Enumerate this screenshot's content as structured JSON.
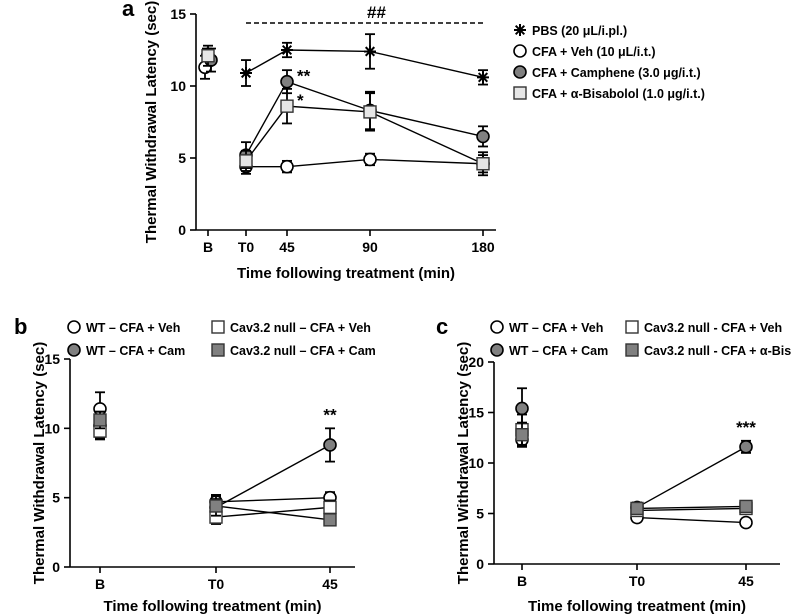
{
  "chart_data": [
    {
      "id": "a",
      "type": "line",
      "panel_label": "a",
      "xlabel": "Time following treatment (min)",
      "ylabel": "Thermal Withdrawal Latency (sec)",
      "x_ticks": [
        "B",
        "T0",
        "45",
        "90",
        "180"
      ],
      "ylim": [
        0,
        15
      ],
      "y_ticks": [
        0,
        5,
        10,
        15
      ],
      "legend_position": "right",
      "series": [
        {
          "name": "PBS (20 μL/i.pl.)",
          "marker": "star",
          "fill": "#000000",
          "values": [
            12.2,
            10.9,
            12.5,
            12.4,
            10.6
          ],
          "errors": [
            0.4,
            0.9,
            0.5,
            1.2,
            0.5
          ]
        },
        {
          "name": "CFA + Veh (10 μL/i.t.)",
          "marker": "circle",
          "fill": "#ffffff",
          "values": [
            11.3,
            4.4,
            4.4,
            4.9,
            4.6
          ],
          "errors": [
            0.8,
            0.5,
            0.4,
            0.4,
            0.8
          ]
        },
        {
          "name": "CFA + Camphene (3.0 μg/i.t.)",
          "marker": "circle",
          "fill": "#808080",
          "values": [
            11.8,
            5.2,
            10.3,
            8.3,
            6.5
          ],
          "errors": [
            0.8,
            0.9,
            0.8,
            1.3,
            0.7
          ]
        },
        {
          "name": "CFA + α-Bisabolol (1.0 μg/i.t.)",
          "marker": "square",
          "fill": "#e6e6e6",
          "values": [
            12.1,
            4.8,
            8.6,
            8.2,
            4.6
          ],
          "errors": [
            0.7,
            0.7,
            1.2,
            1.3,
            0.6
          ]
        }
      ],
      "annotations": [
        {
          "text": "##",
          "x_from": "T0",
          "x_to": "180",
          "line": "dashed"
        },
        {
          "text": "**",
          "x": "45",
          "series": "CFA + Camphene (3.0 μg/i.t.)"
        },
        {
          "text": "*",
          "x": "45",
          "series": "CFA + α-Bisabolol (1.0 μg/i.t.)"
        }
      ]
    },
    {
      "id": "b",
      "type": "line",
      "panel_label": "b",
      "xlabel": "Time following treatment (min)",
      "ylabel": "Thermal Withdrawal Latency (sec)",
      "x_ticks": [
        "B",
        "T0",
        "45"
      ],
      "ylim": [
        0,
        15
      ],
      "y_ticks": [
        0,
        5,
        10,
        15
      ],
      "legend_position": "top",
      "series": [
        {
          "name": "WT – CFA + Veh",
          "marker": "circle",
          "fill": "#ffffff",
          "values": [
            11.4,
            4.7,
            5.0
          ],
          "errors": [
            1.2,
            0.5,
            0.4
          ]
        },
        {
          "name": "WT – CFA + Cam",
          "marker": "circle",
          "fill": "#808080",
          "values": [
            10.2,
            4.3,
            8.8
          ],
          "errors": [
            1.0,
            0.6,
            1.2
          ]
        },
        {
          "name": "Cav3.2 null – CFA + Veh",
          "marker": "square",
          "fill": "#ffffff",
          "values": [
            9.8,
            3.6,
            4.3
          ],
          "errors": [
            0.5,
            0.5,
            0.5
          ]
        },
        {
          "name": "Cav3.2 null – CFA + Cam",
          "marker": "square",
          "fill": "#808080",
          "values": [
            10.6,
            4.4,
            3.4
          ],
          "errors": [
            0.6,
            0.7,
            0.4
          ]
        }
      ],
      "annotations": [
        {
          "text": "**",
          "x": "45",
          "series": "WT – CFA + Cam"
        }
      ]
    },
    {
      "id": "c",
      "type": "line",
      "panel_label": "c",
      "xlabel": "Time following treatment (min)",
      "ylabel": "Thermal Withdrawal Latency (sec)",
      "x_ticks": [
        "B",
        "T0",
        "45"
      ],
      "ylim": [
        0,
        20
      ],
      "y_ticks": [
        0,
        5,
        10,
        15,
        20
      ],
      "legend_position": "top",
      "series": [
        {
          "name": "WT – CFA + Veh",
          "marker": "circle",
          "fill": "#ffffff",
          "values": [
            12.3,
            4.6,
            4.1
          ],
          "errors": [
            0.6,
            0.4,
            0.4
          ]
        },
        {
          "name": "WT – CFA + Cam",
          "marker": "circle",
          "fill": "#808080",
          "values": [
            15.4,
            5.6,
            11.6
          ],
          "errors": [
            2.0,
            0.5,
            0.6
          ]
        },
        {
          "name": "Cav3.2 null - CFA + Veh",
          "marker": "square",
          "fill": "#ffffff",
          "values": [
            13.3,
            5.3,
            5.5
          ],
          "errors": [
            1.5,
            0.5,
            0.5
          ]
        },
        {
          "name": "Cav3.2 null - CFA + α-Bis",
          "marker": "square",
          "fill": "#808080",
          "values": [
            12.8,
            5.5,
            5.7
          ],
          "errors": [
            1.2,
            0.5,
            0.5
          ]
        }
      ],
      "annotations": [
        {
          "text": "***",
          "x": "45",
          "series": "WT – CFA + Cam"
        }
      ]
    }
  ]
}
